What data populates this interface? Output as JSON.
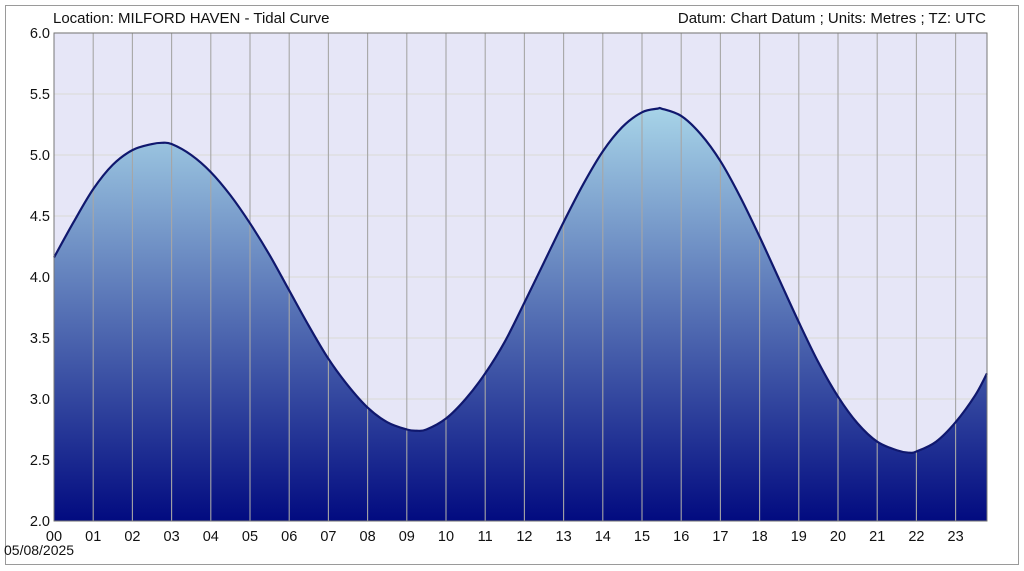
{
  "header": {
    "location": "Location: MILFORD HAVEN - Tidal Curve",
    "datum": "Datum: Chart Datum ; Units: Metres ; TZ: UTC"
  },
  "date_label": "05/08/2025",
  "colors": {
    "plot_background": "#e6e6f7",
    "curve": "#10186e",
    "fill_top": "#a7d4e8",
    "fill_bottom": "#020b80",
    "grid": "#a6a6a6",
    "hgrid": "#dcdcdc"
  },
  "chart_data": {
    "type": "area",
    "title": "",
    "xlabel": "",
    "ylabel": "",
    "ylim": [
      2.0,
      6.0
    ],
    "xlim": [
      0,
      23.8
    ],
    "grid": true,
    "x_ticks": [
      "00",
      "01",
      "02",
      "03",
      "04",
      "05",
      "06",
      "07",
      "08",
      "09",
      "10",
      "11",
      "12",
      "13",
      "14",
      "15",
      "16",
      "17",
      "18",
      "19",
      "20",
      "21",
      "22",
      "23"
    ],
    "y_ticks": [
      "2.0",
      "2.5",
      "3.0",
      "3.5",
      "4.0",
      "4.5",
      "5.0",
      "5.5",
      "6.0"
    ],
    "series": [
      {
        "x": [
          0,
          0.5,
          1,
          1.5,
          2,
          2.5,
          2.75,
          3,
          3.5,
          4,
          4.5,
          5,
          5.5,
          6,
          6.5,
          7,
          7.5,
          8,
          8.5,
          9,
          9.25,
          9.5,
          10,
          10.5,
          11,
          11.5,
          12,
          12.5,
          13,
          13.5,
          14,
          14.5,
          15,
          15.4,
          15.5,
          16,
          16.5,
          17,
          17.5,
          18,
          18.5,
          19,
          19.5,
          20,
          20.5,
          21,
          21.5,
          21.8,
          22,
          22.5,
          23,
          23.5,
          23.8
        ],
        "y": [
          4.16,
          4.45,
          4.72,
          4.92,
          5.04,
          5.09,
          5.1,
          5.09,
          5.0,
          4.86,
          4.67,
          4.44,
          4.18,
          3.89,
          3.6,
          3.33,
          3.11,
          2.93,
          2.81,
          2.75,
          2.74,
          2.75,
          2.84,
          3.0,
          3.21,
          3.47,
          3.79,
          4.12,
          4.45,
          4.76,
          5.03,
          5.23,
          5.35,
          5.38,
          5.38,
          5.32,
          5.17,
          4.95,
          4.66,
          4.33,
          3.98,
          3.63,
          3.3,
          3.02,
          2.8,
          2.65,
          2.58,
          2.56,
          2.57,
          2.65,
          2.81,
          3.03,
          3.21
        ]
      }
    ]
  }
}
